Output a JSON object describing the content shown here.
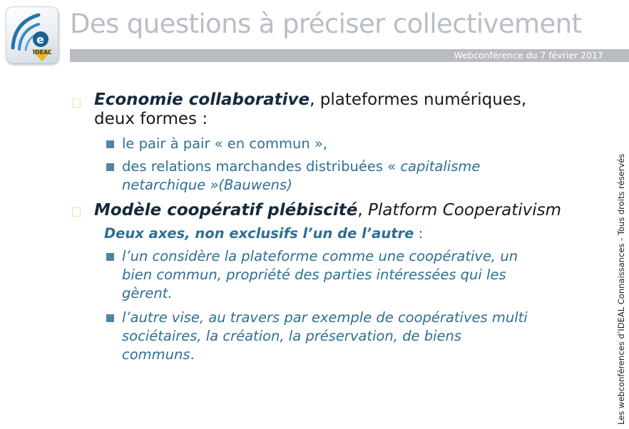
{
  "header": {
    "title": "Des questions à préciser collectivement",
    "subtitle": "Webconférence du 7 février 2017",
    "logo_text": "IDEAL"
  },
  "bullets": [
    {
      "bold": "Economie collaborative",
      "rest_line1": ", plateformes numériques,",
      "rest_line2": "deux formes :",
      "sub": [
        {
          "line1": "le pair à pair « en commun »,"
        },
        {
          "line1_pre": "des relations marchandes distribuées « ",
          "line1_it": "capitalisme",
          "line2": "netarchique »(Bauwens)"
        }
      ]
    },
    {
      "bold": "Modèle coopératif plébiscité",
      "sep": ", ",
      "rest_italic": "Platform Cooperativism",
      "heading_bold": "Deux axes, non exclusifs l’un de l’autre",
      "heading_rest": " :",
      "sub": [
        {
          "lines": [
            "l’un considère la plateforme comme une coopérative, un",
            "bien commun, propriété des parties intéressées qui les",
            "gèrent."
          ]
        },
        {
          "lines": [
            "l’autre vise, au travers par exemple de coopératives multi",
            "sociétaires, la création, la préservation, de biens"
          ],
          "last_italic": "communs",
          "last_end": "."
        }
      ]
    }
  ],
  "side_note": "Les webconférences d’IDEAL Connaissances - Tous droits réservés",
  "colors": {
    "accent": "#2e6f95",
    "bullet": "#4f86a6",
    "title": "#b9bec6",
    "band": "#b9bcc1"
  }
}
